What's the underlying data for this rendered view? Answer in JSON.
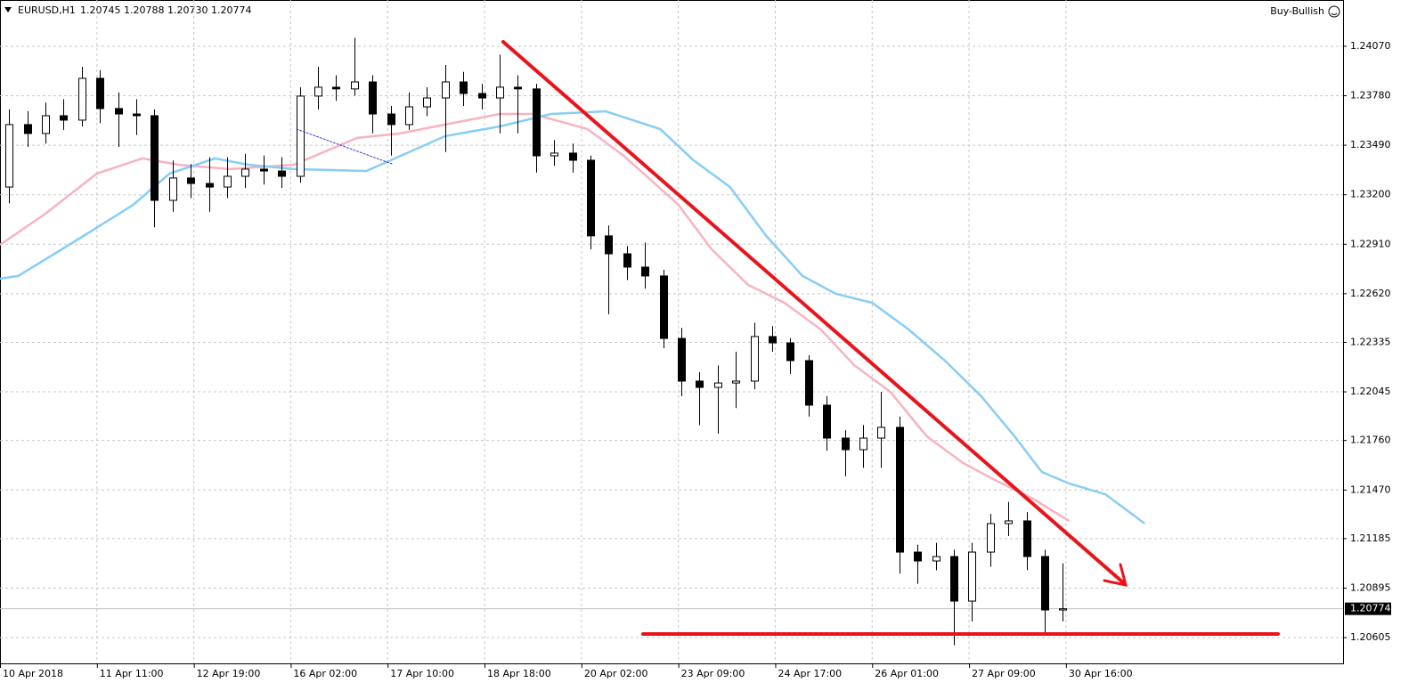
{
  "chart_data": {
    "type": "candlestick",
    "title": "EURUSD,H1",
    "quote": "1.20745 1.20788 1.20730 1.20774",
    "expert": "Buy-Bullish",
    "bull_color": "#ffffff",
    "bear_color": "#000000",
    "grid": true,
    "xlim": [
      0,
      443.5
    ],
    "ylim": [
      1.20454,
      1.24341
    ],
    "xticks": [
      {
        "value": 0,
        "label": "10 Apr 2018"
      },
      {
        "value": 32,
        "label": "11 Apr 11:00"
      },
      {
        "value": 64,
        "label": "12 Apr 19:00"
      },
      {
        "value": 96,
        "label": "16 Apr 02:00"
      },
      {
        "value": 128,
        "label": "17 Apr 10:00"
      },
      {
        "value": 160,
        "label": "18 Apr 18:00"
      },
      {
        "value": 192,
        "label": "20 Apr 02:00"
      },
      {
        "value": 224,
        "label": "23 Apr 09:00"
      },
      {
        "value": 256,
        "label": "24 Apr 17:00"
      },
      {
        "value": 288,
        "label": "26 Apr 01:00"
      },
      {
        "value": 320,
        "label": "27 Apr 09:00"
      },
      {
        "value": 352,
        "label": "30 Apr 16:00"
      }
    ],
    "yticks": [
      {
        "value": 1.2407,
        "label": "1.24070"
      },
      {
        "value": 1.2378,
        "label": "1.23780"
      },
      {
        "value": 1.2349,
        "label": "1.23490"
      },
      {
        "value": 1.232,
        "label": "1.23200"
      },
      {
        "value": 1.2291,
        "label": "1.22910"
      },
      {
        "value": 1.2262,
        "label": "1.22620"
      },
      {
        "value": 1.22335,
        "label": "1.22335"
      },
      {
        "value": 1.22045,
        "label": "1.22045"
      },
      {
        "value": 1.2176,
        "label": "1.21760"
      },
      {
        "value": 1.2147,
        "label": "1.21470"
      },
      {
        "value": 1.21185,
        "label": "1.21185"
      },
      {
        "value": 1.20895,
        "label": "1.20895"
      },
      {
        "value": 1.20605,
        "label": "1.20605"
      }
    ],
    "last": {
      "value": 1.20774,
      "label": "1.20774"
    },
    "x": [
      3,
      9,
      15,
      21,
      27,
      33,
      39,
      45,
      51,
      57,
      63,
      69,
      75,
      81,
      87,
      93,
      99,
      105,
      111,
      117,
      123,
      129,
      135,
      141,
      147,
      153,
      159,
      165,
      171,
      177,
      183,
      189,
      195,
      201,
      207,
      213,
      219,
      225,
      231,
      237,
      243,
      249,
      255,
      261,
      267,
      273,
      279,
      285,
      291,
      297,
      303,
      309,
      315,
      321,
      327,
      333,
      339,
      345,
      351
    ],
    "ohlc": [
      [
        1.23245,
        1.237,
        1.2315,
        1.23611
      ],
      [
        1.23611,
        1.2369,
        1.2348,
        1.23559
      ],
      [
        1.23559,
        1.2374,
        1.235,
        1.23663
      ],
      [
        1.23663,
        1.2376,
        1.2358,
        1.23637
      ],
      [
        1.23637,
        1.2395,
        1.236,
        1.23882
      ],
      [
        1.23882,
        1.2393,
        1.2362,
        1.23705
      ],
      [
        1.23705,
        1.238,
        1.2348,
        1.23673
      ],
      [
        1.23673,
        1.2376,
        1.2355,
        1.23663
      ],
      [
        1.23663,
        1.237,
        1.2301,
        1.23167
      ],
      [
        1.23167,
        1.234,
        1.231,
        1.23298
      ],
      [
        1.23298,
        1.2338,
        1.2318,
        1.23266
      ],
      [
        1.23266,
        1.2342,
        1.231,
        1.23245
      ],
      [
        1.23245,
        1.2342,
        1.2318,
        1.23308
      ],
      [
        1.23308,
        1.2344,
        1.2324,
        1.2335
      ],
      [
        1.2335,
        1.2343,
        1.2326,
        1.23339
      ],
      [
        1.23339,
        1.2342,
        1.2324,
        1.23308
      ],
      [
        1.23308,
        1.2383,
        1.2327,
        1.23778
      ],
      [
        1.23778,
        1.2395,
        1.237,
        1.2383
      ],
      [
        1.2383,
        1.239,
        1.2375,
        1.2382
      ],
      [
        1.2382,
        1.2412,
        1.2378,
        1.23861
      ],
      [
        1.23861,
        1.239,
        1.2356,
        1.23673
      ],
      [
        1.23673,
        1.2372,
        1.2343,
        1.23611
      ],
      [
        1.23611,
        1.238,
        1.2358,
        1.23715
      ],
      [
        1.23715,
        1.2383,
        1.2366,
        1.23767
      ],
      [
        1.23767,
        1.2396,
        1.2345,
        1.23861
      ],
      [
        1.23861,
        1.2392,
        1.2372,
        1.23793
      ],
      [
        1.23793,
        1.2385,
        1.237,
        1.23767
      ],
      [
        1.23767,
        1.2402,
        1.2356,
        1.2383
      ],
      [
        1.2383,
        1.239,
        1.2356,
        1.2382
      ],
      [
        1.2382,
        1.2385,
        1.2333,
        1.23428
      ],
      [
        1.23428,
        1.2352,
        1.2337,
        1.23444
      ],
      [
        1.23444,
        1.235,
        1.2333,
        1.23402
      ],
      [
        1.23402,
        1.2343,
        1.2288,
        1.22959
      ],
      [
        1.22959,
        1.2302,
        1.225,
        1.22854
      ],
      [
        1.22854,
        1.229,
        1.227,
        1.22776
      ],
      [
        1.22776,
        1.2292,
        1.2265,
        1.22724
      ],
      [
        1.22724,
        1.2276,
        1.223,
        1.22358
      ],
      [
        1.22358,
        1.2242,
        1.2202,
        1.22108
      ],
      [
        1.22108,
        1.2216,
        1.2185,
        1.22071
      ],
      [
        1.22071,
        1.222,
        1.218,
        1.22097
      ],
      [
        1.22097,
        1.2228,
        1.2195,
        1.22108
      ],
      [
        1.22108,
        1.2245,
        1.2206,
        1.22369
      ],
      [
        1.22369,
        1.2243,
        1.2228,
        1.22332
      ],
      [
        1.22332,
        1.2236,
        1.2215,
        1.22228
      ],
      [
        1.22228,
        1.2226,
        1.219,
        1.21967
      ],
      [
        1.21967,
        1.2202,
        1.217,
        1.21774
      ],
      [
        1.21774,
        1.2182,
        1.2155,
        1.21706
      ],
      [
        1.21706,
        1.2185,
        1.216,
        1.21774
      ],
      [
        1.21774,
        1.22045,
        1.216,
        1.21837
      ],
      [
        1.21837,
        1.219,
        1.2098,
        1.21106
      ],
      [
        1.21106,
        1.2115,
        1.2092,
        1.21054
      ],
      [
        1.21054,
        1.2116,
        1.21,
        1.2108
      ],
      [
        1.2108,
        1.2112,
        1.2056,
        1.20819
      ],
      [
        1.20819,
        1.2116,
        1.207,
        1.21106
      ],
      [
        1.21106,
        1.2133,
        1.2102,
        1.21273
      ],
      [
        1.21273,
        1.214,
        1.212,
        1.21289
      ],
      [
        1.21289,
        1.2134,
        1.21,
        1.2108
      ],
      [
        1.2108,
        1.2112,
        1.2063,
        1.20767
      ],
      [
        1.20767,
        1.2104,
        1.207,
        1.20774
      ]
    ],
    "lines": [
      {
        "color": "#f7b3c0",
        "x": [
          0,
          15,
          32,
          47,
          59,
          76,
          97,
          118,
          132,
          147,
          165,
          176,
          194,
          206,
          224,
          235,
          247,
          259,
          271,
          282,
          294,
          306,
          318,
          329,
          341,
          353
        ],
        "values": [
          1.22906,
          1.23089,
          1.23324,
          1.23413,
          1.23376,
          1.2335,
          1.23376,
          1.23533,
          1.23559,
          1.23611,
          1.23673,
          1.23673,
          1.23585,
          1.23428,
          1.23141,
          1.2288,
          1.22672,
          1.22567,
          1.22411,
          1.22202,
          1.22045,
          1.21785,
          1.21628,
          1.21524,
          1.21419,
          1.21289
        ]
      },
      {
        "color": "#87cdf5",
        "x": [
          0,
          6,
          18,
          29,
          44,
          56,
          71,
          82,
          97,
          121,
          129,
          147,
          165,
          182,
          200,
          218,
          229,
          241,
          253,
          265,
          276,
          288,
          300,
          312,
          324,
          335,
          344,
          353,
          365,
          378
        ],
        "values": [
          1.22708,
          1.22724,
          1.22854,
          1.22974,
          1.23141,
          1.23324,
          1.23413,
          1.23376,
          1.2335,
          1.23339,
          1.23402,
          1.23543,
          1.236,
          1.23673,
          1.23689,
          1.23585,
          1.23402,
          1.23246,
          1.22959,
          1.22724,
          1.22619,
          1.22567,
          1.22411,
          1.22228,
          1.22019,
          1.21785,
          1.21576,
          1.21508,
          1.21445,
          1.21273
        ]
      }
    ]
  }
}
